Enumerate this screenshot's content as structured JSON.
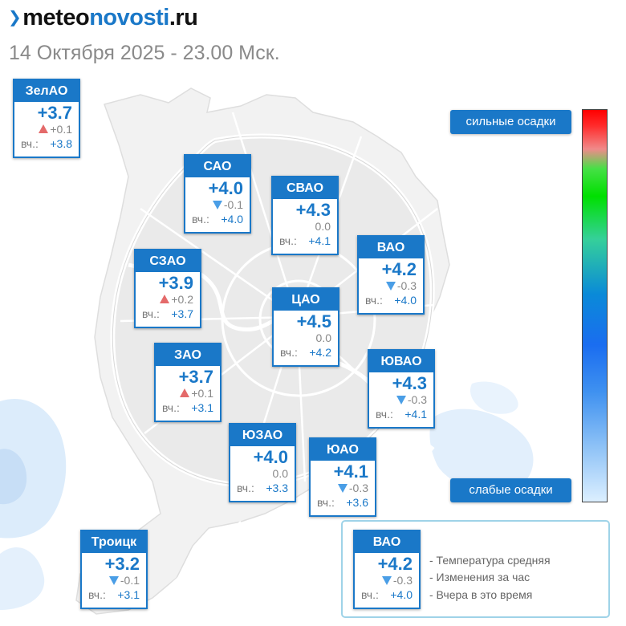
{
  "header": {
    "logo_part1": "meteo",
    "logo_part2": "novosti",
    "logo_part3": ".ru",
    "subtitle": "14 Октября 2025 - 23.00 Мск."
  },
  "yesterday_label": "вч.:",
  "districts": [
    {
      "name": "ЗелАО",
      "temp": "+3.7",
      "change": "+0.1",
      "trend": "up",
      "yesterday": "+3.8"
    },
    {
      "name": "САО",
      "temp": "+4.0",
      "change": "-0.1",
      "trend": "down",
      "yesterday": "+4.0"
    },
    {
      "name": "СВАО",
      "temp": "+4.3",
      "change": "0.0",
      "trend": "none",
      "yesterday": "+4.1"
    },
    {
      "name": "ВАО",
      "temp": "+4.2",
      "change": "-0.3",
      "trend": "down",
      "yesterday": "+4.0"
    },
    {
      "name": "СЗАО",
      "temp": "+3.9",
      "change": "+0.2",
      "trend": "up",
      "yesterday": "+3.7"
    },
    {
      "name": "ЦАО",
      "temp": "+4.5",
      "change": "0.0",
      "trend": "none",
      "yesterday": "+4.2"
    },
    {
      "name": "ЗАО",
      "temp": "+3.7",
      "change": "+0.1",
      "trend": "up",
      "yesterday": "+3.1"
    },
    {
      "name": "ЮВАО",
      "temp": "+4.3",
      "change": "-0.3",
      "trend": "down",
      "yesterday": "+4.1"
    },
    {
      "name": "ЮЗАО",
      "temp": "+4.0",
      "change": "0.0",
      "trend": "none",
      "yesterday": "+3.3"
    },
    {
      "name": "ЮАО",
      "temp": "+4.1",
      "change": "-0.3",
      "trend": "down",
      "yesterday": "+3.6"
    },
    {
      "name": "Троицк",
      "temp": "+3.2",
      "change": "-0.1",
      "trend": "down",
      "yesterday": "+3.1"
    }
  ],
  "precip_scale": {
    "top_label": "сильные осадки",
    "bottom_label": "слабые осадки",
    "colors": [
      "#ff0000",
      "#00e000",
      "#1a6df0",
      "#dcefff"
    ]
  },
  "legend": {
    "sample": {
      "name": "ВАО",
      "temp": "+4.2",
      "change": "-0.3",
      "trend": "down",
      "yesterday": "+4.0"
    },
    "lines": [
      "- Температура средняя",
      "- Изменения за час",
      "- Вчера в это время"
    ]
  },
  "colors": {
    "accent": "#1a78c8",
    "rise": "#e46a6a",
    "fall": "#4a9ee6"
  }
}
